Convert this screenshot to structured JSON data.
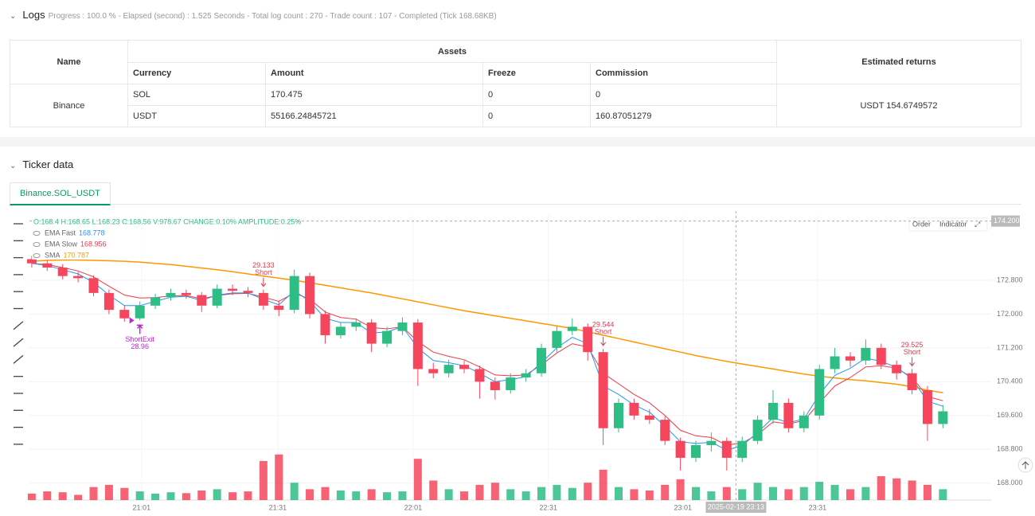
{
  "logs": {
    "title": "Logs",
    "status": "Progress : 100.0 % - Elapsed (second) : 1.525 Seconds - Total log count : 270 - Trade count : 107 - Completed (Tick 168.68KB)"
  },
  "table": {
    "name_header": "Name",
    "assets_header": "Assets",
    "returns_header": "Estimated returns",
    "columns": [
      "Currency",
      "Amount",
      "Freeze",
      "Commission"
    ],
    "exchange": "Binance",
    "returns": "USDT 154.6749572",
    "rows": [
      [
        "SOL",
        "170.475",
        "0",
        "0"
      ],
      [
        "USDT",
        "55166.24845721",
        "0",
        "160.87051279"
      ]
    ]
  },
  "ticker": {
    "title": "Ticker data",
    "tab": "Binance.SOL_USDT",
    "buttons": [
      "Order",
      "Indicator"
    ]
  },
  "chart_data": {
    "type": "candlestick",
    "ohlc_info": "O:168.4 H:168.65 L:168.23 C:168.56 V:978.67 CHANGE:0.10% AMPLITUDE:0.25%",
    "up_color": "#2ebd85",
    "down_color": "#f6465d",
    "xlim": [
      -0.15,
      59.6
    ],
    "ylim": [
      167.6,
      174.344
    ],
    "volume_lim": [
      0,
      1100
    ],
    "xticks": [
      {
        "value": 7.11,
        "label": "21:01"
      },
      {
        "value": 15.93,
        "label": "21:31"
      },
      {
        "value": 24.69,
        "label": "22:01"
      },
      {
        "value": 33.45,
        "label": "22:31"
      },
      {
        "value": 42.16,
        "label": "23:01"
      },
      {
        "value": 50.88,
        "label": "23:31"
      }
    ],
    "yticks": [
      {
        "value": 168,
        "label": "168.000"
      },
      {
        "value": 168.8,
        "label": "168.800"
      },
      {
        "value": 169.6,
        "label": "169.600"
      },
      {
        "value": 170.4,
        "label": "170.400"
      },
      {
        "value": 171.2,
        "label": "171.200"
      },
      {
        "value": 172,
        "label": "172.000"
      },
      {
        "value": 172.8,
        "label": "172.800"
      }
    ],
    "crosshair": {
      "x": 45.6,
      "label": "2025-02-19 23:13",
      "price": 174.2,
      "price_label": "174.200"
    },
    "candles": [
      [
        173.3,
        173.38,
        173.1,
        173.2
      ],
      [
        173.2,
        173.28,
        173.02,
        173.1
      ],
      [
        173.1,
        173.18,
        172.82,
        172.9
      ],
      [
        172.9,
        173.0,
        172.75,
        172.85
      ],
      [
        172.85,
        172.92,
        172.42,
        172.5
      ],
      [
        172.5,
        172.58,
        172.0,
        172.1
      ],
      [
        172.1,
        172.2,
        171.82,
        171.9
      ],
      [
        171.9,
        172.3,
        171.85,
        172.2
      ],
      [
        172.2,
        172.48,
        172.12,
        172.4
      ],
      [
        172.4,
        172.6,
        172.32,
        172.5
      ],
      [
        172.5,
        172.58,
        172.36,
        172.45
      ],
      [
        172.45,
        172.52,
        172.05,
        172.2
      ],
      [
        172.2,
        172.7,
        172.14,
        172.6
      ],
      [
        172.6,
        172.7,
        172.45,
        172.55
      ],
      [
        172.55,
        172.64,
        172.4,
        172.5
      ],
      [
        172.5,
        172.58,
        172.1,
        172.2
      ],
      [
        172.2,
        172.3,
        171.95,
        172.1
      ],
      [
        172.1,
        173.05,
        172.02,
        172.9
      ],
      [
        172.9,
        172.98,
        171.9,
        172.0
      ],
      [
        172.0,
        172.08,
        171.3,
        171.5
      ],
      [
        171.5,
        171.8,
        171.42,
        171.7
      ],
      [
        171.7,
        171.9,
        171.6,
        171.8
      ],
      [
        171.8,
        171.88,
        171.1,
        171.3
      ],
      [
        171.3,
        171.7,
        171.22,
        171.6
      ],
      [
        171.6,
        171.92,
        171.5,
        171.8
      ],
      [
        171.8,
        171.88,
        170.3,
        170.7
      ],
      [
        170.7,
        170.85,
        170.48,
        170.6
      ],
      [
        170.6,
        170.92,
        170.5,
        170.8
      ],
      [
        170.8,
        170.9,
        170.6,
        170.7
      ],
      [
        170.7,
        170.78,
        170.0,
        170.4
      ],
      [
        170.4,
        170.5,
        169.98,
        170.2
      ],
      [
        170.2,
        170.6,
        170.12,
        170.5
      ],
      [
        170.5,
        170.7,
        170.4,
        170.6
      ],
      [
        170.6,
        171.3,
        170.52,
        171.2
      ],
      [
        171.2,
        171.72,
        171.1,
        171.6
      ],
      [
        171.6,
        171.9,
        171.5,
        171.7
      ],
      [
        171.7,
        171.78,
        170.9,
        171.1
      ],
      [
        171.1,
        171.18,
        168.9,
        169.3
      ],
      [
        169.3,
        170.0,
        169.2,
        169.9
      ],
      [
        169.9,
        170.0,
        169.5,
        169.6
      ],
      [
        169.6,
        169.75,
        169.4,
        169.5
      ],
      [
        169.5,
        169.58,
        168.9,
        169.0
      ],
      [
        169.0,
        169.08,
        168.3,
        168.6
      ],
      [
        168.6,
        169.0,
        168.5,
        168.9
      ],
      [
        168.9,
        169.2,
        168.75,
        169.0
      ],
      [
        169.0,
        169.08,
        168.3,
        168.6
      ],
      [
        168.6,
        169.1,
        168.5,
        169.0
      ],
      [
        169.0,
        169.6,
        168.92,
        169.5
      ],
      [
        169.5,
        170.2,
        169.4,
        169.9
      ],
      [
        169.9,
        170.0,
        169.2,
        169.3
      ],
      [
        169.3,
        169.7,
        169.2,
        169.6
      ],
      [
        169.6,
        170.8,
        169.5,
        170.7
      ],
      [
        170.7,
        171.2,
        170.6,
        171.0
      ],
      [
        171.0,
        171.1,
        170.75,
        170.9
      ],
      [
        170.9,
        171.4,
        170.8,
        171.2
      ],
      [
        171.2,
        171.3,
        170.7,
        170.8
      ],
      [
        170.8,
        170.9,
        170.45,
        170.6
      ],
      [
        170.6,
        170.7,
        170.1,
        170.2
      ],
      [
        170.2,
        170.3,
        169.0,
        169.4
      ],
      [
        169.4,
        169.85,
        169.3,
        169.7
      ]
    ],
    "volumes": [
      150,
      200,
      180,
      120,
      300,
      350,
      280,
      200,
      150,
      180,
      160,
      220,
      250,
      180,
      200,
      900,
      1050,
      400,
      250,
      300,
      220,
      200,
      250,
      180,
      200,
      950,
      450,
      250,
      200,
      350,
      400,
      250,
      200,
      300,
      350,
      280,
      400,
      700,
      300,
      250,
      220,
      350,
      480,
      300,
      200,
      300,
      250,
      400,
      300,
      250,
      300,
      420,
      350,
      250,
      300,
      550,
      500,
      450,
      350,
      250
    ],
    "series": [
      {
        "name": "EMA Fast",
        "legend_value": "168.778",
        "color": "#2196f3",
        "values": [
          173.2,
          173.15,
          173.05,
          172.95,
          172.75,
          172.45,
          172.2,
          172.2,
          172.3,
          172.4,
          172.42,
          172.32,
          172.45,
          172.5,
          172.5,
          172.35,
          172.22,
          172.55,
          172.3,
          171.9,
          171.8,
          171.8,
          171.55,
          171.58,
          171.7,
          171.2,
          170.9,
          170.85,
          170.78,
          170.6,
          170.4,
          170.45,
          170.52,
          170.85,
          171.2,
          171.45,
          171.3,
          170.3,
          170.1,
          169.85,
          169.68,
          169.35,
          168.98,
          168.94,
          168.97,
          168.78,
          168.89,
          169.2,
          169.55,
          169.43,
          169.52,
          170.1,
          170.55,
          170.72,
          170.96,
          170.88,
          170.74,
          170.47,
          169.94,
          169.82
        ]
      },
      {
        "name": "EMA Slow",
        "legend_value": "168.956",
        "color": "#f23645",
        "values": [
          173.2,
          173.17,
          173.1,
          173.02,
          172.88,
          172.66,
          172.45,
          172.38,
          172.39,
          172.43,
          172.44,
          172.36,
          172.44,
          172.48,
          172.49,
          172.4,
          172.3,
          172.5,
          172.35,
          172.05,
          171.92,
          171.88,
          171.68,
          171.65,
          171.7,
          171.35,
          171.1,
          171.0,
          170.92,
          170.75,
          170.56,
          170.54,
          170.56,
          170.8,
          171.08,
          171.3,
          171.22,
          170.6,
          170.35,
          170.1,
          169.9,
          169.6,
          169.25,
          169.12,
          169.08,
          168.9,
          168.95,
          169.15,
          169.45,
          169.4,
          169.48,
          169.9,
          170.3,
          170.5,
          170.75,
          170.78,
          170.72,
          170.5,
          170.05,
          169.95
        ]
      },
      {
        "name": "SMA",
        "legend_value": "170.787",
        "color": "#ff9800",
        "values": [
          173.25,
          173.27,
          173.28,
          173.28,
          173.27,
          173.26,
          173.25,
          173.23,
          173.2,
          173.17,
          173.13,
          173.09,
          173.05,
          173.0,
          172.95,
          172.9,
          172.85,
          172.8,
          172.74,
          172.68,
          172.62,
          172.56,
          172.5,
          172.43,
          172.36,
          172.29,
          172.22,
          172.15,
          172.08,
          172.02,
          171.96,
          171.9,
          171.84,
          171.78,
          171.72,
          171.66,
          171.58,
          171.5,
          171.42,
          171.34,
          171.26,
          171.18,
          171.1,
          171.02,
          170.95,
          170.88,
          170.82,
          170.76,
          170.7,
          170.64,
          170.58,
          170.53,
          170.49,
          170.45,
          170.42,
          170.38,
          170.34,
          170.28,
          170.2,
          170.14
        ]
      }
    ],
    "annotations": [
      {
        "candle": 15,
        "value": "29.133",
        "text": "Short",
        "side": "above"
      },
      {
        "candle": 7,
        "value": "28.96",
        "text": "ShortExit",
        "side": "below"
      },
      {
        "candle": 37,
        "value": "29.544",
        "text": "Short",
        "side": "above"
      },
      {
        "candle": 57,
        "value": "29.525",
        "text": "Short",
        "side": "above"
      }
    ]
  }
}
